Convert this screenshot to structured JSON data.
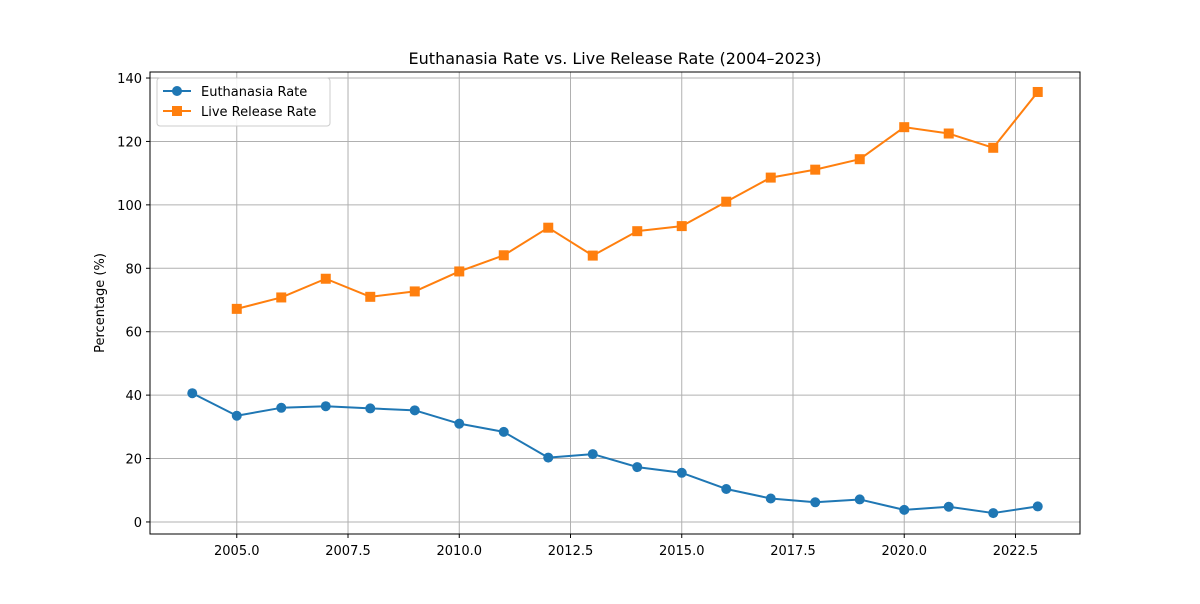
{
  "chart_data": {
    "type": "line",
    "title": "Euthanasia Rate vs. Live Release Rate (2004–2023)",
    "xlabel": "",
    "ylabel": "Percentage (%)",
    "xlim": [
      2003.05,
      2023.95
    ],
    "ylim": [
      -3.8,
      141.9
    ],
    "xticks": [
      2005.0,
      2007.5,
      2010.0,
      2012.5,
      2015.0,
      2017.5,
      2020.0,
      2022.5
    ],
    "xtick_labels": [
      "2005.0",
      "2007.5",
      "2010.0",
      "2012.5",
      "2015.0",
      "2017.5",
      "2020.0",
      "2022.5"
    ],
    "yticks": [
      0,
      20,
      40,
      60,
      80,
      100,
      120,
      140
    ],
    "ytick_labels": [
      "0",
      "20",
      "40",
      "60",
      "80",
      "100",
      "120",
      "140"
    ],
    "grid": true,
    "legend_position": "upper-left",
    "series": [
      {
        "name": "Euthanasia Rate",
        "color": "#1f77b4",
        "marker": "circle",
        "x": [
          2004,
          2005,
          2006,
          2007,
          2008,
          2009,
          2010,
          2011,
          2012,
          2013,
          2014,
          2015,
          2016,
          2017,
          2018,
          2019,
          2020,
          2021,
          2022,
          2023
        ],
        "y": [
          40.6,
          33.5,
          36.0,
          36.5,
          35.8,
          35.2,
          31.0,
          28.4,
          20.3,
          21.4,
          17.3,
          15.5,
          10.4,
          7.4,
          6.2,
          7.1,
          3.8,
          4.8,
          2.8,
          4.9
        ]
      },
      {
        "name": "Live Release Rate",
        "color": "#ff7f0e",
        "marker": "square",
        "x": [
          2005,
          2006,
          2007,
          2008,
          2009,
          2010,
          2011,
          2012,
          2013,
          2014,
          2015,
          2016,
          2017,
          2018,
          2019,
          2020,
          2021,
          2022,
          2023
        ],
        "y": [
          67.2,
          70.8,
          76.7,
          71.0,
          72.7,
          79.0,
          84.1,
          92.8,
          84.0,
          91.7,
          93.3,
          101.0,
          108.6,
          111.1,
          114.4,
          124.5,
          122.5,
          118.0,
          135.6
        ]
      }
    ]
  }
}
